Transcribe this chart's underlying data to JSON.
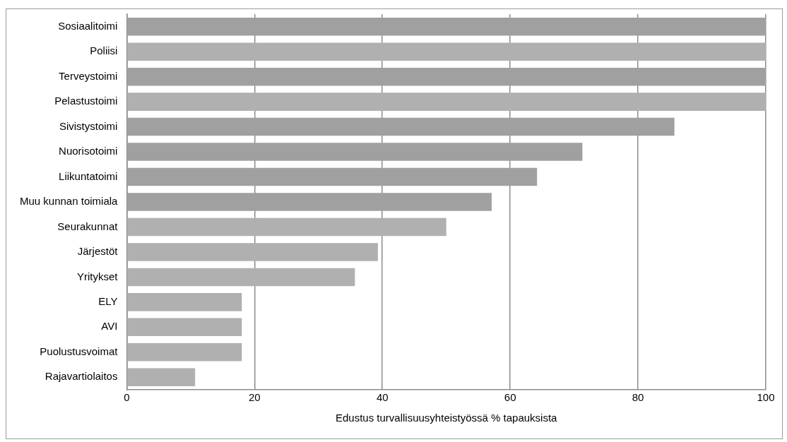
{
  "chart_data": {
    "type": "bar",
    "orientation": "horizontal",
    "xlabel": "Edustus turvallisuusyhteistyössä % tapauksista",
    "categories": [
      "Sosiaalitoimi",
      "Poliisi",
      "Terveystoimi",
      "Pelastustoimi",
      "Sivistystoimi",
      "Nuorisotoimi",
      "Liikuntatoimi",
      "Muu kunnan toimiala",
      "Seurakunnat",
      "Järjestöt",
      "Yritykset",
      "ELY",
      "AVI",
      "Puolustusvoimat",
      "Rajavartiolaitos"
    ],
    "values": [
      100,
      100,
      100,
      100,
      85.7,
      71.3,
      64.2,
      57.1,
      50,
      39.3,
      35.7,
      18,
      18,
      18,
      10.7
    ],
    "colors": [
      "#a0a0a0",
      "#b0b0b0",
      "#a0a0a0",
      "#b0b0b0",
      "#a0a0a0",
      "#a0a0a0",
      "#a0a0a0",
      "#a0a0a0",
      "#b0b0b0",
      "#b0b0b0",
      "#b0b0b0",
      "#b0b0b0",
      "#b0b0b0",
      "#b0b0b0",
      "#b0b0b0"
    ],
    "xlim": [
      0,
      100
    ],
    "xticks": [
      0,
      20,
      40,
      60,
      80,
      100
    ],
    "grid": "x",
    "legend": false
  }
}
